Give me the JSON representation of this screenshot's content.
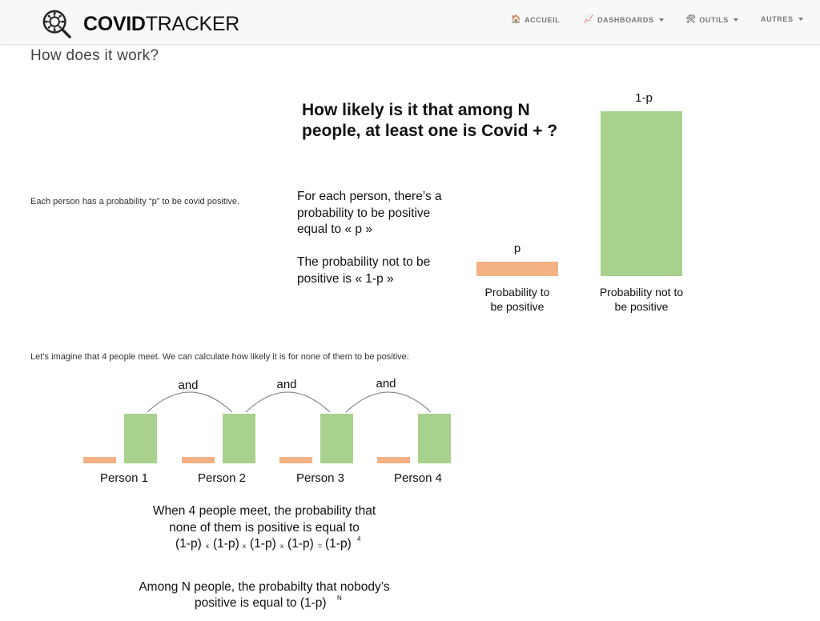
{
  "brand": {
    "bold": "COVID",
    "light": "TRACKER"
  },
  "nav": {
    "items": [
      {
        "label": "ACCUEIL",
        "icon": "house-icon",
        "glyph": "🏠",
        "dropdown": false
      },
      {
        "label": "DASHBOARDS",
        "icon": "chart-icon",
        "glyph": "📈",
        "dropdown": true
      },
      {
        "label": "OUTILS",
        "icon": "tools-icon",
        "glyph": "🛠",
        "dropdown": true
      },
      {
        "label": "AUTRES",
        "icon": "",
        "glyph": "",
        "dropdown": true
      }
    ]
  },
  "page": {
    "title": "How does it work?",
    "intro1": "Each person has a probability “p” to be covid positive.",
    "intro2": "Let’s imagine that 4 people meet. We can calculate how likely it is for none of them to be positive:"
  },
  "figure1": {
    "heading_line1": "How likely is it that among N",
    "heading_line2": "people, at least one is Covid + ?",
    "text_line1": "For each person, there’s a",
    "text_line2": "probability to be positive",
    "text_line3": "equal to « p »",
    "text_line4": "The probability not to be",
    "text_line5": "positive is « 1-p »",
    "bar_p_label": "p",
    "bar_q_label": "1-p",
    "caption_p_line1": "Probability to",
    "caption_p_line2": "be positive",
    "caption_q_line1": "Probability not to",
    "caption_q_line2": "be positive"
  },
  "figure2": {
    "connector_label": "and",
    "persons": [
      "Person 1",
      "Person 2",
      "Person 3",
      "Person 4"
    ],
    "result_line1": "When 4 people meet, the probability that",
    "result_line2": "none of them is positive is equal to",
    "factor": "(1-p)",
    "times": "x",
    "equals": "=",
    "exponent_4": "4",
    "general_line1": "Among N people, the probabilty that nobody’s",
    "general_line2": "positive is equal to (1-p)",
    "exponent_n": "N"
  },
  "colors": {
    "positive_bar": "#f4b183",
    "negative_bar": "#a9d18e",
    "navbar_bg": "#f8f8f8"
  }
}
